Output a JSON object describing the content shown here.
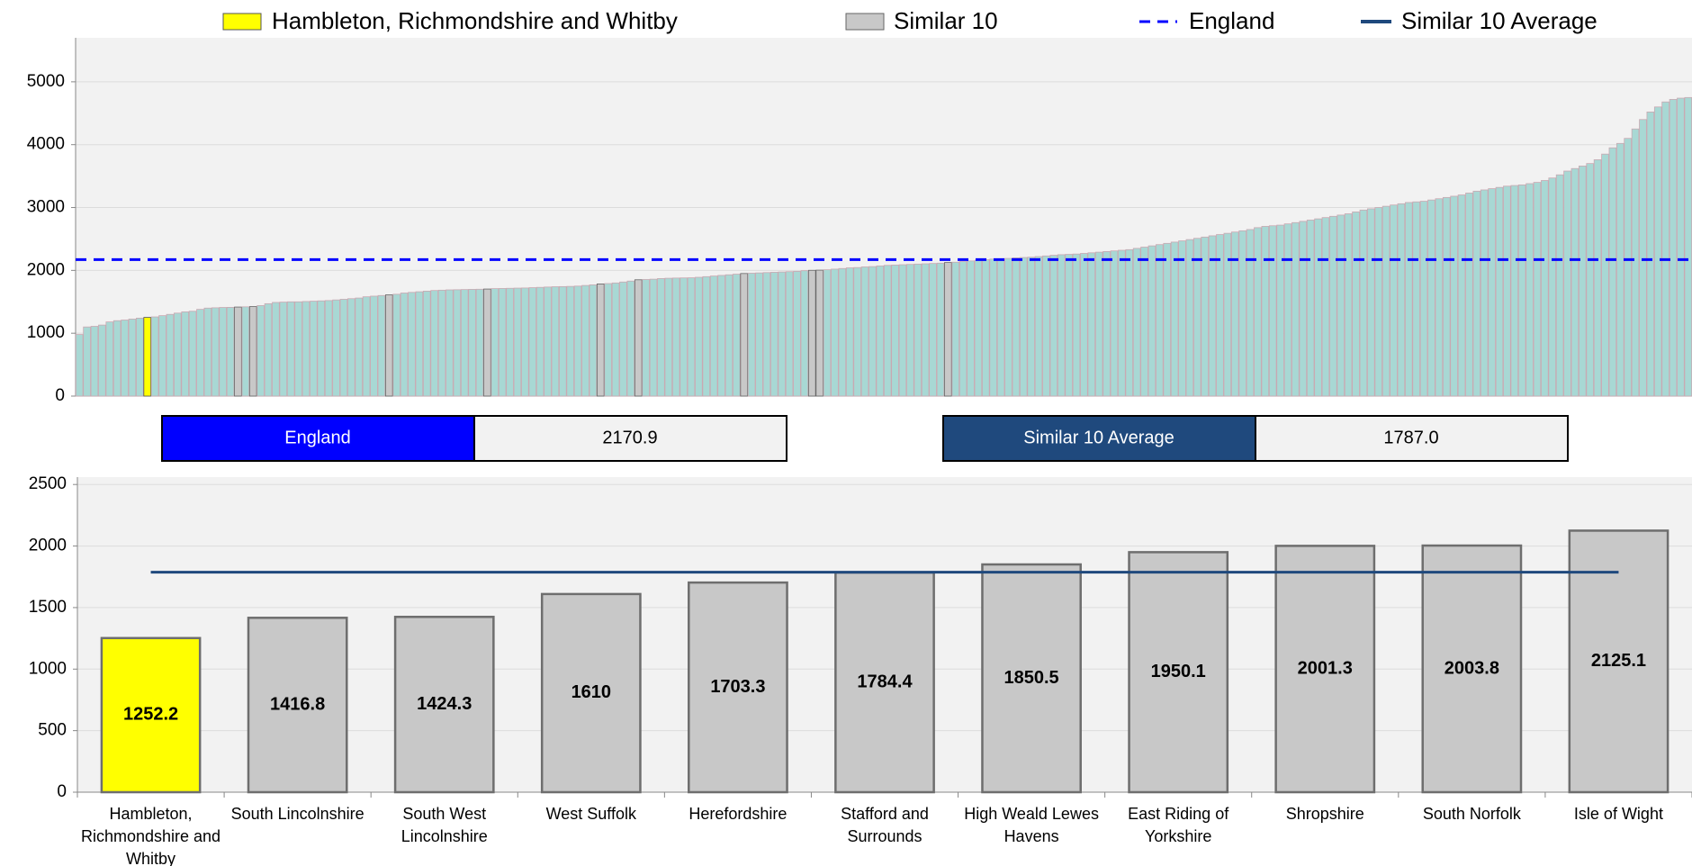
{
  "chart_data": [
    {
      "type": "bar",
      "values": [
        980,
        1100,
        1110,
        1130,
        1180,
        1200,
        1210,
        1225,
        1240,
        1252.2,
        1260,
        1280,
        1300,
        1320,
        1340,
        1350,
        1380,
        1400,
        1405,
        1410,
        1412,
        1416.8,
        1420,
        1424.3,
        1440,
        1470,
        1490,
        1495,
        1500,
        1500,
        1505,
        1510,
        1515,
        1520,
        1530,
        1540,
        1550,
        1560,
        1580,
        1590,
        1600,
        1610,
        1620,
        1640,
        1650,
        1660,
        1670,
        1680,
        1685,
        1690,
        1692,
        1695,
        1698,
        1700,
        1703.3,
        1710,
        1712,
        1715,
        1718,
        1720,
        1725,
        1730,
        1735,
        1740,
        1742,
        1745,
        1750,
        1760,
        1770,
        1784.4,
        1790,
        1800,
        1815,
        1830,
        1850.5,
        1855,
        1860,
        1870,
        1875,
        1878,
        1880,
        1882,
        1890,
        1900,
        1910,
        1920,
        1930,
        1940,
        1950.1,
        1955,
        1960,
        1965,
        1970,
        1975,
        1980,
        1985,
        1995,
        2001.3,
        2003.8,
        2010,
        2020,
        2030,
        2040,
        2045,
        2055,
        2060,
        2070,
        2080,
        2085,
        2090,
        2095,
        2100,
        2105,
        2110,
        2115,
        2125.1,
        2130,
        2140,
        2150,
        2160,
        2170,
        2180,
        2185,
        2190,
        2200,
        2205,
        2210,
        2220,
        2230,
        2240,
        2250,
        2255,
        2260,
        2270,
        2280,
        2290,
        2300,
        2310,
        2320,
        2330,
        2350,
        2370,
        2390,
        2410,
        2430,
        2450,
        2470,
        2490,
        2510,
        2530,
        2550,
        2570,
        2590,
        2610,
        2630,
        2650,
        2680,
        2700,
        2710,
        2720,
        2740,
        2760,
        2780,
        2800,
        2820,
        2840,
        2860,
        2880,
        2900,
        2930,
        2960,
        2980,
        3000,
        3020,
        3040,
        3060,
        3080,
        3090,
        3100,
        3120,
        3140,
        3160,
        3180,
        3200,
        3230,
        3260,
        3280,
        3300,
        3320,
        3340,
        3350,
        3360,
        3380,
        3400,
        3430,
        3470,
        3520,
        3580,
        3620,
        3660,
        3700,
        3760,
        3850,
        3950,
        4020,
        4100,
        4250,
        4400,
        4520,
        4600,
        4680,
        4720,
        4740,
        4750
      ],
      "color": "#a8d8d4",
      "highlight": {
        "name": "Hambleton, Richmondshire and Whitby",
        "color": "#ffff00",
        "index": 9
      },
      "similar": {
        "name": "Similar 10",
        "color": "#c8c8c8",
        "indices": [
          21,
          23,
          41,
          54,
          69,
          74,
          88,
          97,
          98,
          115
        ]
      },
      "reference": {
        "name": "England",
        "value": 2170.9,
        "color": "#0000ff",
        "dashed": true
      },
      "ylim": [
        0,
        5700
      ],
      "yticks": [
        0,
        1000,
        2000,
        3000,
        4000,
        5000
      ],
      "grid": true
    },
    {
      "type": "bar",
      "categories": [
        "Hambleton, Richmondshire and Whitby",
        "South Lincolnshire",
        "South West Lincolnshire",
        "West Suffolk",
        "Herefordshire",
        "Stafford and Surrounds",
        "High Weald Lewes Havens",
        "East Riding of Yorkshire",
        "Shropshire",
        "South Norfolk",
        "Isle of Wight"
      ],
      "values": [
        1252.2,
        1416.8,
        1424.3,
        1610,
        1703.3,
        1784.4,
        1850.5,
        1950.1,
        2001.3,
        2003.8,
        2125.1
      ],
      "colors": [
        "#ffff00",
        "#c8c8c8",
        "#c8c8c8",
        "#c8c8c8",
        "#c8c8c8",
        "#c8c8c8",
        "#c8c8c8",
        "#c8c8c8",
        "#c8c8c8",
        "#c8c8c8",
        "#c8c8c8"
      ],
      "average": {
        "name": "Similar 10 Average",
        "value": 1787,
        "label": "1787.0",
        "color": "#1f497d"
      },
      "ylim": [
        0,
        2560
      ],
      "yticks": [
        0,
        500,
        1000,
        1500,
        2000,
        2500
      ],
      "grid": true
    }
  ]
}
